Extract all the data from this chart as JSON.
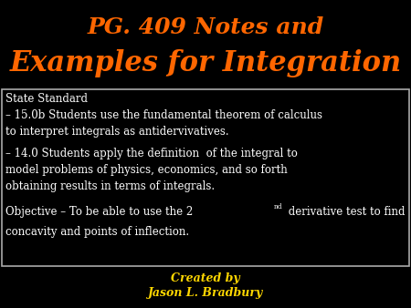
{
  "background_color": "#000000",
  "title_line1": "PG. 409 Notes and",
  "title_line2": "Examples for Integration",
  "title_color": "#FF6600",
  "title_fontsize1": 18,
  "title_fontsize2": 22,
  "box_bg": "#000000",
  "box_edge": "#AAAAAA",
  "text_color": "#FFFFFF",
  "footer_line1": "Created by",
  "footer_line2": "Jason L. Bradbury",
  "footer_color": "#FFD700",
  "body_fontsize": 8.5,
  "footer_fontsize": 9,
  "superscript": "nd",
  "line1_state": "State Standard",
  "line2_15": "– 15.0b Students use the fundamental theorem of calculus\nto interpret integrals as antidervivatives.",
  "line3_14": "– 14.0 Students apply the definition  of the integral to\nmodel problems of physics, economics, and so forth\nobtaining results in terms of integrals.",
  "line4_obj_pre": "Objective – To be able to use the 2",
  "line4_obj_post": " derivative test to find",
  "line5_concav": "concavity and points of inflection."
}
